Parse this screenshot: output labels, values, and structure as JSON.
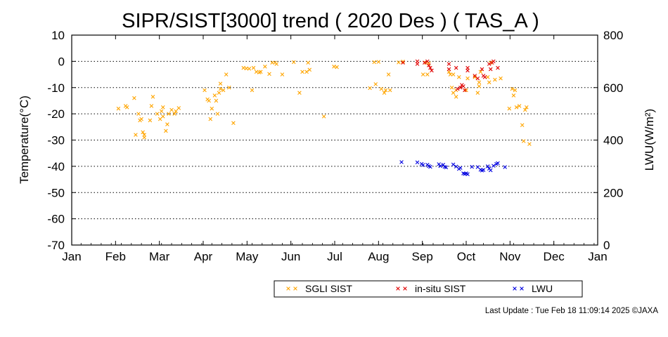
{
  "chart_data": {
    "type": "scatter",
    "title": "SIPR/SIST[3000] trend ( 2020 Des ) ( TAS_A )",
    "ylabel": "Temperature(°C)",
    "y2label": "LWU(W/m²)",
    "ylim": [
      -70,
      10
    ],
    "y2lim": [
      0,
      800
    ],
    "yticks": [
      10,
      0,
      -10,
      -20,
      -30,
      -40,
      -50,
      -60,
      -70
    ],
    "y2ticks": [
      800,
      600,
      400,
      200,
      0
    ],
    "xticks": [
      "Jan",
      "Feb",
      "Mar",
      "Apr",
      "May",
      "Jun",
      "Jul",
      "Aug",
      "Sep",
      "Oct",
      "Nov",
      "Dec",
      "Jan"
    ],
    "grid_y": true,
    "legend_position": "bottom-right",
    "colors": {
      "sgli": "#ffa500",
      "insitu": "#e00000",
      "lwu": "#0000e0"
    },
    "series": [
      {
        "name": "SGLI SIST",
        "axis": "left",
        "x_unit": "day-of-year",
        "points": [
          [
            33,
            -18
          ],
          [
            38,
            -17
          ],
          [
            39,
            -17.5
          ],
          [
            44,
            -14
          ],
          [
            45,
            -28
          ],
          [
            47,
            -20
          ],
          [
            48,
            -22.5
          ],
          [
            49,
            -22
          ],
          [
            50,
            -27
          ],
          [
            51,
            -28
          ],
          [
            51,
            -29
          ],
          [
            55,
            -22.5
          ],
          [
            56,
            -17
          ],
          [
            57,
            -13.5
          ],
          [
            60,
            -20
          ],
          [
            62,
            -22
          ],
          [
            63,
            -19
          ],
          [
            64,
            -21
          ],
          [
            64,
            -17.5
          ],
          [
            66,
            -26.5
          ],
          [
            67,
            -24
          ],
          [
            68,
            -20
          ],
          [
            70,
            -18.5
          ],
          [
            72,
            -20
          ],
          [
            73,
            -19
          ],
          [
            75,
            -17.8
          ],
          [
            93,
            -11
          ],
          [
            95,
            -14.5
          ],
          [
            96,
            -15
          ],
          [
            97,
            -22
          ],
          [
            98,
            -18
          ],
          [
            100,
            -13
          ],
          [
            101,
            -15
          ],
          [
            102,
            -20
          ],
          [
            103,
            -12
          ],
          [
            104,
            -8.5
          ],
          [
            104,
            -10.5
          ],
          [
            106,
            -11
          ],
          [
            108,
            -5
          ],
          [
            110,
            -10
          ],
          [
            113,
            -23.5
          ],
          [
            120,
            -2.5
          ],
          [
            122,
            -2.7
          ],
          [
            124,
            -2.8
          ],
          [
            126,
            -11
          ],
          [
            127,
            -2.5
          ],
          [
            129,
            -4
          ],
          [
            131,
            -4.2
          ],
          [
            132,
            -4
          ],
          [
            135,
            -2
          ],
          [
            138,
            -4.8
          ],
          [
            140,
            -0.5
          ],
          [
            142,
            -0.5
          ],
          [
            143,
            -1
          ],
          [
            147,
            -5
          ],
          [
            155,
            -0.3
          ],
          [
            159,
            -12
          ],
          [
            161,
            -4
          ],
          [
            164,
            -4
          ],
          [
            165,
            -0.5
          ],
          [
            166,
            -3.2
          ],
          [
            176,
            -21
          ],
          [
            183,
            -2
          ],
          [
            185,
            -2.2
          ],
          [
            208,
            -10.2
          ],
          [
            211,
            -0.3
          ],
          [
            212,
            -8.7
          ],
          [
            214,
            -0.2
          ],
          [
            216,
            -10.5
          ],
          [
            218,
            -12
          ],
          [
            219,
            -11
          ],
          [
            221,
            -5
          ],
          [
            222,
            -11
          ],
          [
            228,
            -0.4
          ],
          [
            231,
            -0.1
          ],
          [
            245,
            -5
          ],
          [
            247,
            -0.5
          ],
          [
            248,
            -5
          ],
          [
            249,
            -0.8
          ],
          [
            263,
            -4
          ],
          [
            264,
            -5
          ],
          [
            265,
            -10
          ],
          [
            266,
            -5
          ],
          [
            266,
            -12
          ],
          [
            268,
            -11
          ],
          [
            268,
            -13.5
          ],
          [
            270,
            -6
          ],
          [
            275,
            -11
          ],
          [
            276,
            -6.5
          ],
          [
            281,
            -6
          ],
          [
            283,
            -12
          ],
          [
            284,
            -8
          ],
          [
            284,
            -9.5
          ],
          [
            285,
            -4
          ],
          [
            290,
            -6
          ],
          [
            291,
            -8
          ],
          [
            292,
            -0.5
          ],
          [
            295,
            -7
          ],
          [
            299,
            -6.5
          ],
          [
            305,
            -18
          ],
          [
            307,
            -10.5
          ],
          [
            308,
            -13
          ],
          [
            309,
            -11
          ],
          [
            310,
            -17.5
          ],
          [
            312,
            -17
          ],
          [
            314,
            -24.3
          ],
          [
            315,
            -30.4
          ],
          [
            316,
            -18.5
          ],
          [
            317,
            -17.5
          ],
          [
            319,
            -31.5
          ]
        ]
      },
      {
        "name": "in-situ SIST",
        "axis": "left",
        "x_unit": "day-of-year",
        "points": [
          [
            231,
            -0.5
          ],
          [
            241,
            0
          ],
          [
            241,
            -1
          ],
          [
            246,
            -0.5
          ],
          [
            248,
            0
          ],
          [
            249,
            -1.5
          ],
          [
            250,
            -2.5
          ],
          [
            251,
            -3.5
          ],
          [
            263,
            -1
          ],
          [
            263,
            -3
          ],
          [
            268,
            -2.5
          ],
          [
            269,
            -10.5
          ],
          [
            271,
            -10
          ],
          [
            272,
            -9
          ],
          [
            273,
            -9.5
          ],
          [
            274,
            -11
          ],
          [
            276,
            -2.5
          ],
          [
            276,
            -3.5
          ],
          [
            281,
            -5.5
          ],
          [
            283,
            -6.5
          ],
          [
            286,
            -3
          ],
          [
            287,
            -5.5
          ],
          [
            288,
            -6
          ],
          [
            291,
            -1
          ],
          [
            292,
            -3
          ],
          [
            293,
            -0.5
          ],
          [
            294,
            0
          ],
          [
            297,
            -2.5
          ]
        ]
      },
      {
        "name": "LWU",
        "axis": "right",
        "x_unit": "day-of-year",
        "points": [
          [
            230,
            316
          ],
          [
            241,
            315
          ],
          [
            244,
            309
          ],
          [
            245,
            305
          ],
          [
            248,
            306
          ],
          [
            249,
            301
          ],
          [
            250,
            298
          ],
          [
            256,
            308
          ],
          [
            257,
            301
          ],
          [
            259,
            306
          ],
          [
            260,
            298
          ],
          [
            261,
            296
          ],
          [
            266,
            307
          ],
          [
            268,
            299
          ],
          [
            270,
            290
          ],
          [
            271,
            294
          ],
          [
            273,
            273
          ],
          [
            274,
            271
          ],
          [
            275,
            273
          ],
          [
            276,
            270
          ],
          [
            279,
            298
          ],
          [
            283,
            297
          ],
          [
            285,
            287
          ],
          [
            286,
            284
          ],
          [
            287,
            286
          ],
          [
            290,
            300
          ],
          [
            291,
            291
          ],
          [
            292,
            285
          ],
          [
            294,
            302
          ],
          [
            296,
            309
          ],
          [
            297,
            312
          ],
          [
            302,
            297
          ]
        ]
      }
    ]
  },
  "footer": {
    "text": "Last Update : Tue Feb 18 11:09:14 2025  ©JAXA"
  }
}
